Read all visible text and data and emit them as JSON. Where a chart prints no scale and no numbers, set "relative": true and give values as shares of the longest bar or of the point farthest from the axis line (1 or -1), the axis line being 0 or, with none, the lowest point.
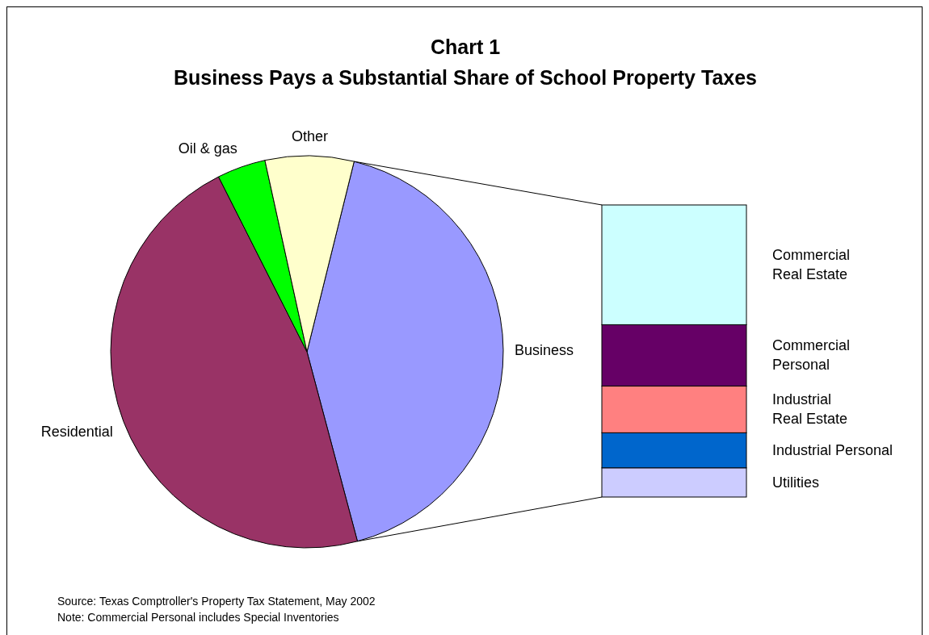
{
  "chart_data": [
    {
      "type": "pie",
      "title": "Chart 1",
      "subtitle": "Business Pays a Substantial Share of School Property Taxes",
      "categories": [
        "Business",
        "Residential",
        "Oil & gas",
        "Other"
      ],
      "values": [
        42,
        46.7,
        4,
        7.3
      ],
      "colors": [
        "#9999ff",
        "#993366",
        "#00ff00",
        "#ffffcc"
      ],
      "annotations": [
        "Source:  Texas Comptroller's Property Tax Statement, May 2002",
        "Note:      Commercial Personal includes Special Inventories"
      ]
    },
    {
      "type": "bar",
      "stacked": true,
      "relative": true,
      "categories": [
        null
      ],
      "series": [
        {
          "name": "Utilities",
          "color": "#ccccff",
          "values": [
            0.1
          ]
        },
        {
          "name": "Industrial Personal",
          "color": "#0066cc",
          "values": [
            0.12
          ]
        },
        {
          "name": "Industrial Real Estate",
          "color": "#ff8080",
          "values": [
            0.16
          ]
        },
        {
          "name": "Commercial Personal",
          "color": "#660066",
          "values": [
            0.21
          ]
        },
        {
          "name": "Commercial Real Estate",
          "color": "#ccffff",
          "values": [
            0.41
          ]
        }
      ]
    }
  ]
}
